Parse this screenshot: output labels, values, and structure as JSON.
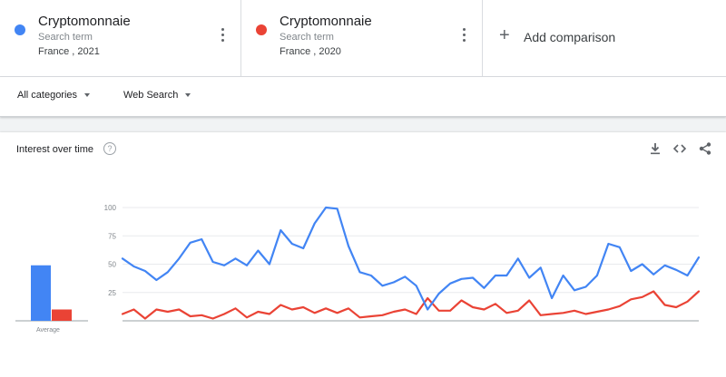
{
  "terms": [
    {
      "name": "Cryptomonnaie",
      "type": "Search term",
      "geo": "France , 2021",
      "color": "#4285f4"
    },
    {
      "name": "Cryptomonnaie",
      "type": "Search term",
      "geo": "France , 2020",
      "color": "#ea4335"
    }
  ],
  "add_comparison": {
    "icon": "plus-icon",
    "label": "Add comparison"
  },
  "filters": {
    "category": "All categories",
    "search_type": "Web Search"
  },
  "card": {
    "title": "Interest over time",
    "icons": [
      "help-icon",
      "download-icon",
      "embed-icon",
      "share-icon"
    ]
  },
  "chart_data": {
    "type": "line",
    "y_ticks": [
      "100",
      "75",
      "50",
      "25"
    ],
    "ylim": [
      0,
      100
    ],
    "grid": true,
    "series": [
      {
        "name": "Cryptomonnaie",
        "color": "#4285f4",
        "values": [
          55,
          48,
          44,
          36,
          43,
          55,
          69,
          72,
          52,
          49,
          55,
          49,
          62,
          50,
          80,
          68,
          64,
          86,
          100,
          99,
          66,
          43,
          40,
          31,
          34,
          39,
          31,
          10,
          24,
          33,
          37,
          38,
          29,
          40,
          40,
          55,
          38,
          47,
          20,
          40,
          27,
          30,
          40,
          68,
          65,
          44,
          50,
          41,
          49,
          45,
          40,
          56
        ]
      },
      {
        "name": "Cryptomonnaie",
        "color": "#ea4335",
        "values": [
          6,
          10,
          2,
          10,
          8,
          10,
          4,
          5,
          2,
          6,
          11,
          3,
          8,
          6,
          14,
          10,
          12,
          7,
          11,
          7,
          11,
          3,
          4,
          5,
          8,
          10,
          6,
          20,
          9,
          9,
          18,
          12,
          10,
          15,
          7,
          9,
          18,
          5,
          6,
          7,
          9,
          6,
          8,
          10,
          13,
          19,
          21,
          26,
          14,
          12,
          17,
          26
        ]
      }
    ],
    "average": {
      "label": "Average",
      "values": [
        49,
        10
      ]
    }
  }
}
